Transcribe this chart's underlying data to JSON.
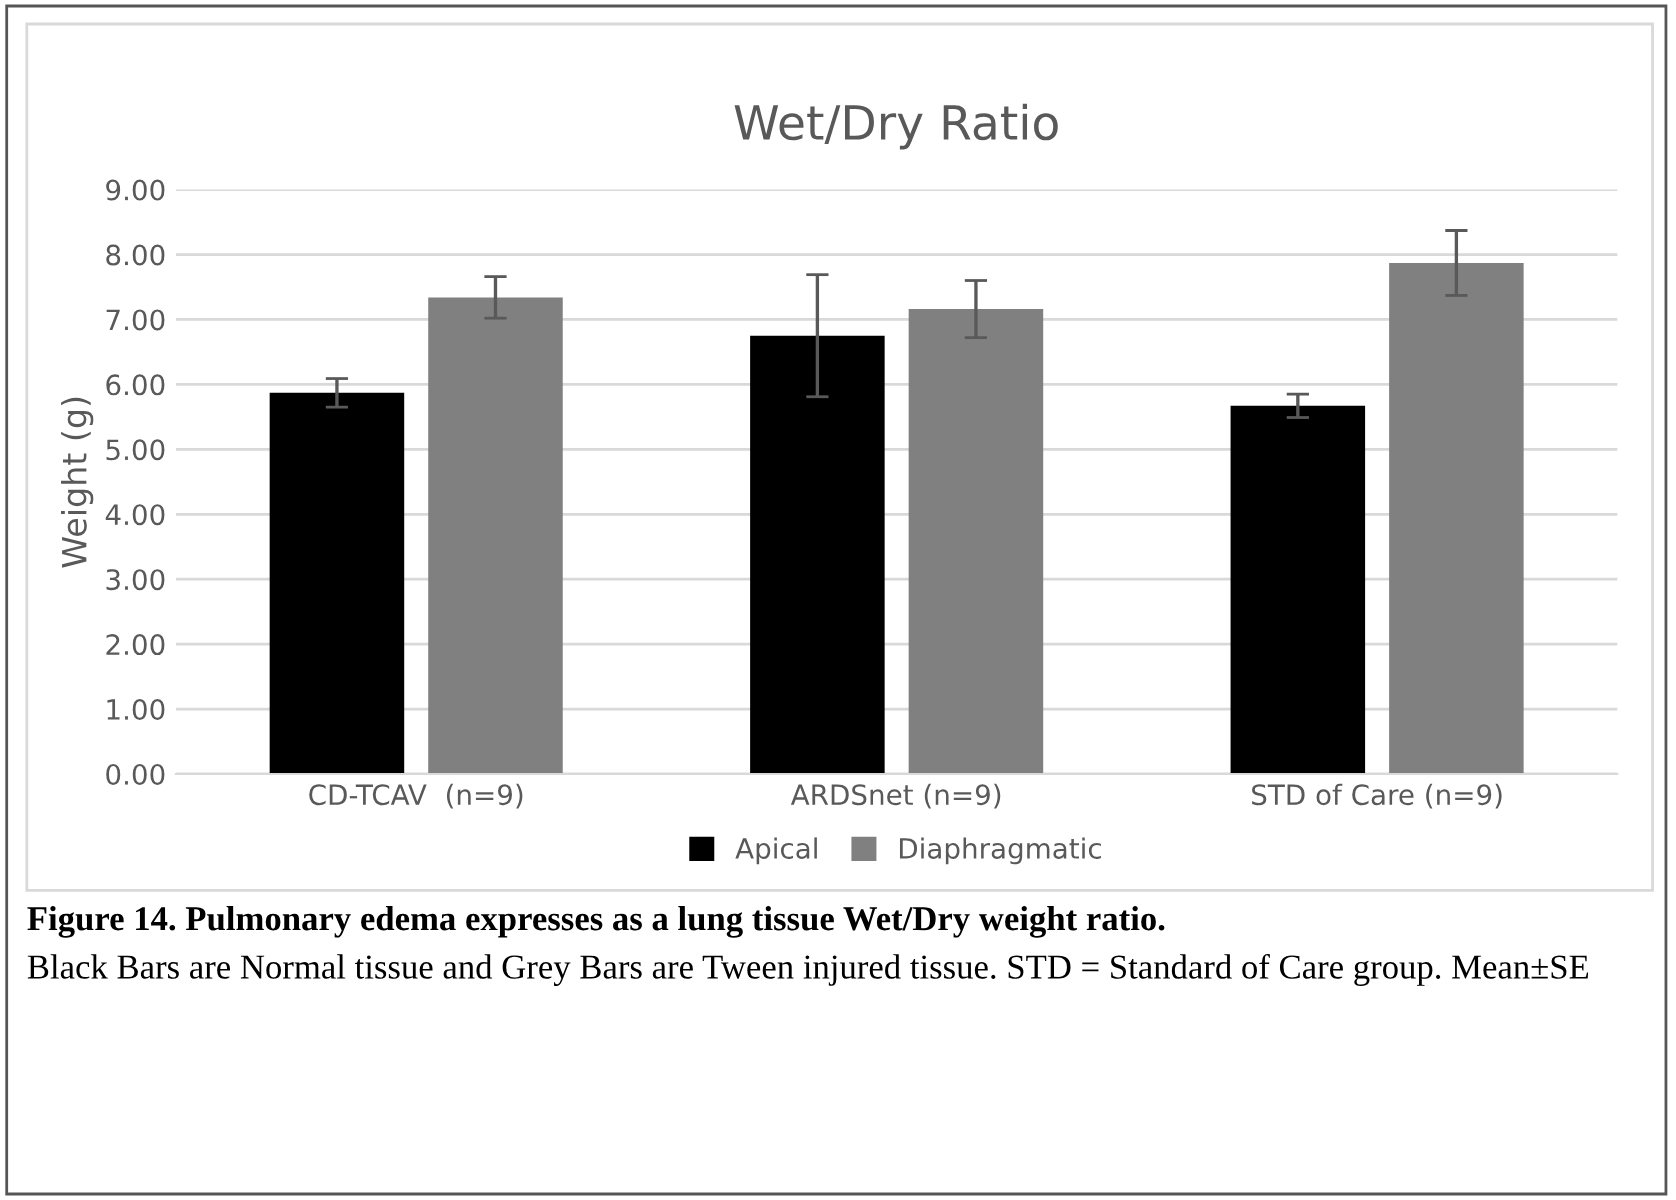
{
  "chart_data": {
    "type": "bar",
    "title": "Wet/Dry Ratio",
    "ylabel": "Weight (g)",
    "categories": [
      "CD-TCAV  (n=9)",
      "ARDSnet (n=9)",
      "STD of Care (n=9)"
    ],
    "series": [
      {
        "name": "Apical",
        "color": "#000000",
        "values": [
          5.87,
          6.75,
          5.67
        ],
        "errors": [
          0.22,
          0.94,
          0.18
        ]
      },
      {
        "name": "Diaphragmatic",
        "color": "#808080",
        "values": [
          7.34,
          7.16,
          7.87
        ],
        "errors": [
          0.32,
          0.44,
          0.5
        ]
      }
    ],
    "ylim": [
      0,
      9
    ],
    "yticks": [
      {
        "value": 0,
        "label": "0.00"
      },
      {
        "value": 1,
        "label": "1.00"
      },
      {
        "value": 2,
        "label": "2.00"
      },
      {
        "value": 3,
        "label": "3.00"
      },
      {
        "value": 4,
        "label": "4.00"
      },
      {
        "value": 5,
        "label": "5.00"
      },
      {
        "value": 6,
        "label": "6.00"
      },
      {
        "value": 7,
        "label": "7.00"
      },
      {
        "value": 8,
        "label": "8.00"
      },
      {
        "value": 9,
        "label": "9.00"
      }
    ],
    "grid": "y",
    "legend": "bottom",
    "annotations": [
      "Figure 14. Pulmonary edema expresses as a lung tissue Wet/Dry weight ratio.",
      "Black Bars are Normal tissue and Grey Bars are Tween injured tissue. STD = Standard of Care group. Mean±SE"
    ]
  }
}
